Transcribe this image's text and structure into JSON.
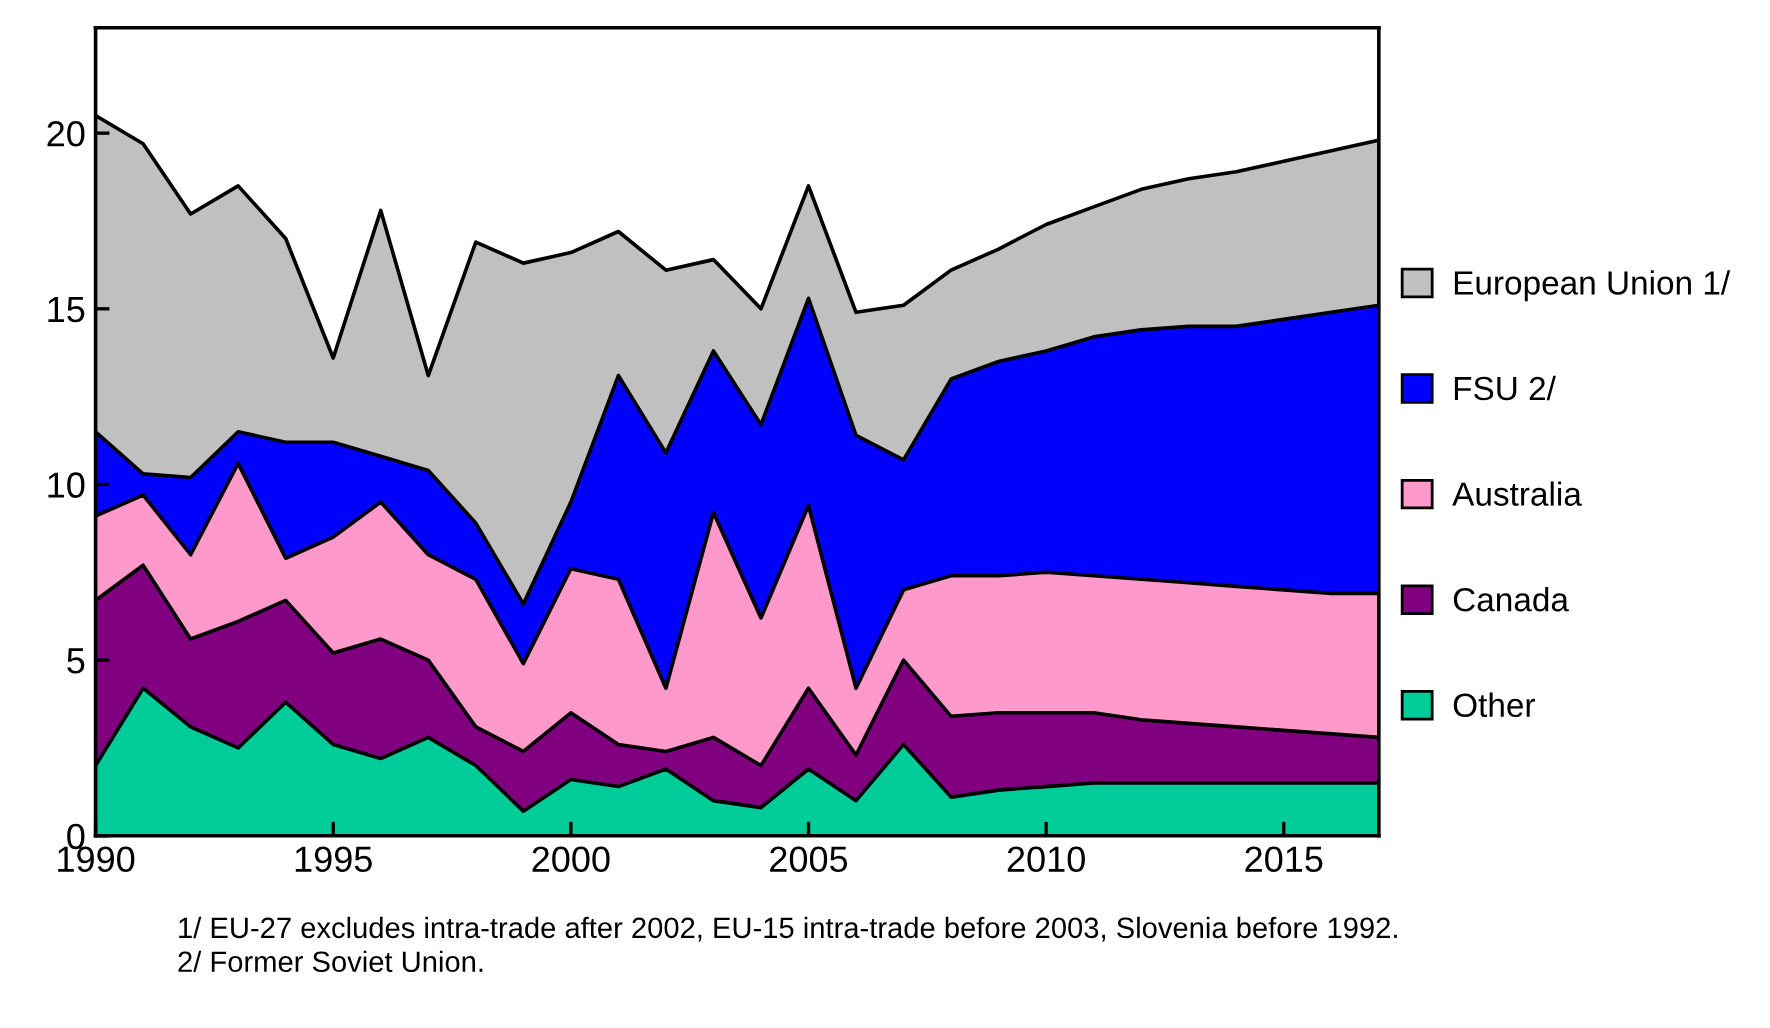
{
  "chart_data": {
    "type": "area",
    "stacked": true,
    "x": [
      "1990",
      "1991",
      "1992",
      "1993",
      "1994",
      "1995",
      "1996",
      "1997",
      "1998",
      "1999",
      "2000",
      "2001",
      "2002",
      "2003",
      "2004",
      "2005",
      "2006",
      "2007",
      "2008",
      "2009",
      "2010",
      "2011",
      "2012",
      "2013",
      "2014",
      "2015",
      "2016",
      "2017"
    ],
    "series": [
      {
        "name": "Other",
        "color": "#00cc99",
        "values": [
          2.0,
          4.2,
          3.1,
          2.5,
          3.8,
          2.6,
          2.2,
          2.8,
          2.0,
          0.7,
          1.6,
          1.4,
          1.9,
          1.0,
          0.8,
          1.9,
          1.0,
          2.6,
          1.1,
          1.3,
          1.4,
          1.5,
          1.5,
          1.5,
          1.5,
          1.5,
          1.5,
          1.5
        ]
      },
      {
        "name": "Canada",
        "color": "#800080",
        "values": [
          4.7,
          3.5,
          2.5,
          3.6,
          2.9,
          2.6,
          3.4,
          2.2,
          1.1,
          1.7,
          1.9,
          1.2,
          0.5,
          1.8,
          1.2,
          2.3,
          1.3,
          2.4,
          2.3,
          2.2,
          2.1,
          2.0,
          1.8,
          1.7,
          1.6,
          1.5,
          1.4,
          1.3
        ]
      },
      {
        "name": "Australia",
        "color": "#ff99cc",
        "values": [
          2.4,
          2.0,
          2.4,
          4.5,
          1.2,
          3.3,
          3.9,
          3.0,
          4.2,
          2.5,
          4.1,
          4.7,
          1.8,
          6.4,
          4.2,
          5.2,
          1.9,
          2.0,
          4.0,
          3.9,
          4.0,
          3.9,
          4.0,
          4.0,
          4.0,
          4.0,
          4.0,
          4.1
        ]
      },
      {
        "name": "FSU 2/",
        "color": "#0000ff",
        "values": [
          2.4,
          0.6,
          2.2,
          0.9,
          3.3,
          2.7,
          1.3,
          2.4,
          1.6,
          1.7,
          1.9,
          5.8,
          6.7,
          4.6,
          5.5,
          5.9,
          7.2,
          3.7,
          5.6,
          6.1,
          6.3,
          6.8,
          7.1,
          7.3,
          7.4,
          7.7,
          8.0,
          8.2
        ]
      },
      {
        "name": "European Union 1/",
        "color": "#c0c0c0",
        "values": [
          9.0,
          9.4,
          7.5,
          7.0,
          5.8,
          2.4,
          7.0,
          2.7,
          8.0,
          9.7,
          7.1,
          4.1,
          5.2,
          2.6,
          3.3,
          3.2,
          3.5,
          4.4,
          3.1,
          3.2,
          3.6,
          3.7,
          4.0,
          4.2,
          4.4,
          4.5,
          4.6,
          4.7
        ]
      }
    ],
    "xlim": [
      "1990",
      "2017"
    ],
    "xticks": [
      {
        "value": "1990",
        "label": "1990"
      },
      {
        "value": "1995",
        "label": "1995"
      },
      {
        "value": "2000",
        "label": "2000"
      },
      {
        "value": "2005",
        "label": "2005"
      },
      {
        "value": "2010",
        "label": "2010"
      },
      {
        "value": "2015",
        "label": "2015"
      }
    ],
    "ylim": [
      0,
      23
    ],
    "yticks": [
      0,
      5,
      10,
      15,
      20
    ],
    "grid": false,
    "legend": "right",
    "annotations": [
      "1/ EU-27 excludes intra-trade after 2002, EU-15 intra-trade before 2003, Slovenia before 1992.",
      "2/ Former Soviet Union."
    ]
  }
}
